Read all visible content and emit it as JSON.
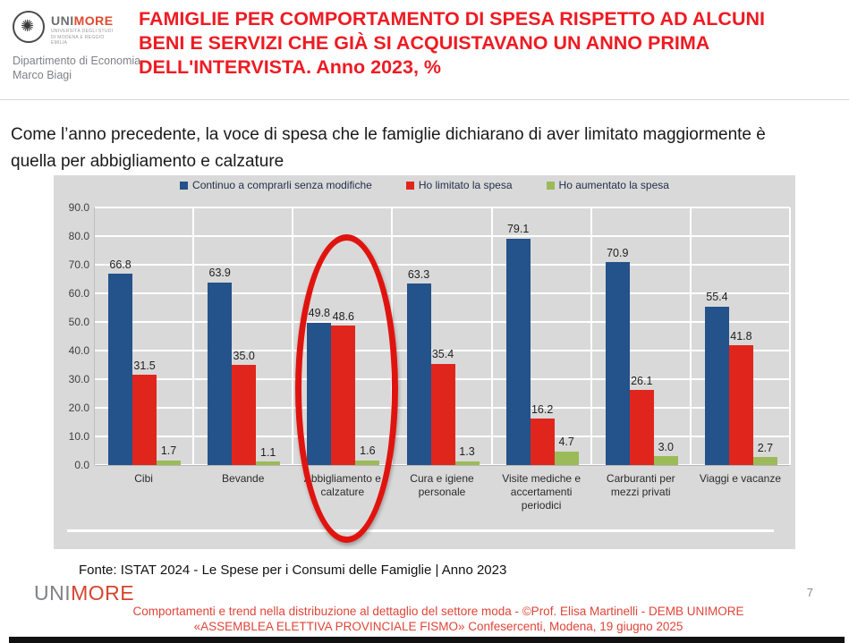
{
  "header": {
    "logo": {
      "seal_icon": "unimore-seal",
      "brand_uni": "UNI",
      "brand_more": "MORE",
      "subtext": "UNIVERSITÀ DEGLI STUDI DI MODENA E REGGIO EMILIA",
      "department": "Dipartimento di Economia Marco Biagi"
    },
    "title": "FAMIGLIE PER COMPORTAMENTO DI SPESA RISPETTO AD ALCUNI BENI E SERVIZI CHE GIÀ SI ACQUISTAVANO UN ANNO PRIMA DELL'INTERVISTA. Anno 2023, %"
  },
  "subtitle": "Come l’anno precedente, la voce di spesa che le famiglie dichiarano di aver limitato maggiormente è quella per abbigliamento e calzature",
  "chart_data": {
    "type": "bar",
    "categories": [
      "Cibi",
      "Bevande",
      "Abbigliamento e calzature",
      "Cura e igiene personale",
      "Visite mediche e accertamenti periodici",
      "Carburanti per mezzi privati",
      "Viaggi e vacanze"
    ],
    "series": [
      {
        "name": "Continuo a comprarli senza modifiche",
        "color": "#24528a",
        "values": [
          66.8,
          63.9,
          49.8,
          63.3,
          79.1,
          70.9,
          55.4
        ]
      },
      {
        "name": "Ho limitato la spesa",
        "color": "#e0261c",
        "values": [
          31.5,
          35.0,
          48.6,
          35.4,
          16.2,
          26.1,
          41.8
        ]
      },
      {
        "name": "Ho aumentato la spesa",
        "color": "#9bbb59",
        "values": [
          1.7,
          1.1,
          1.6,
          1.3,
          4.7,
          3.0,
          2.7
        ]
      }
    ],
    "title": "",
    "xlabel": "",
    "ylabel": "",
    "ylim": [
      0,
      90
    ],
    "ytick_step": 10,
    "grid": true,
    "legend_position": "top",
    "plot_background": "#d9d9d9",
    "annotation": "red ellipse highlighting the category Abbigliamento e calzature",
    "highlight_category": "Abbigliamento e calzature"
  },
  "footer": {
    "source": "Fonte: ISTAT 2024 - Le Spese per i Consumi delle Famiglie | Anno 2023",
    "logo_uni": "UNI",
    "logo_more": "MORE",
    "note_line1": "Comportamenti e trend nella distribuzione al dettaglio del settore moda - ©Prof. Elisa Martinelli  - DEMB UNIMORE",
    "note_line2": "«ASSEMBLEA ELETTIVA PROVINCIALE FISMO» Confesercenti, Modena, 19 giugno 2025",
    "page_number": "7"
  }
}
